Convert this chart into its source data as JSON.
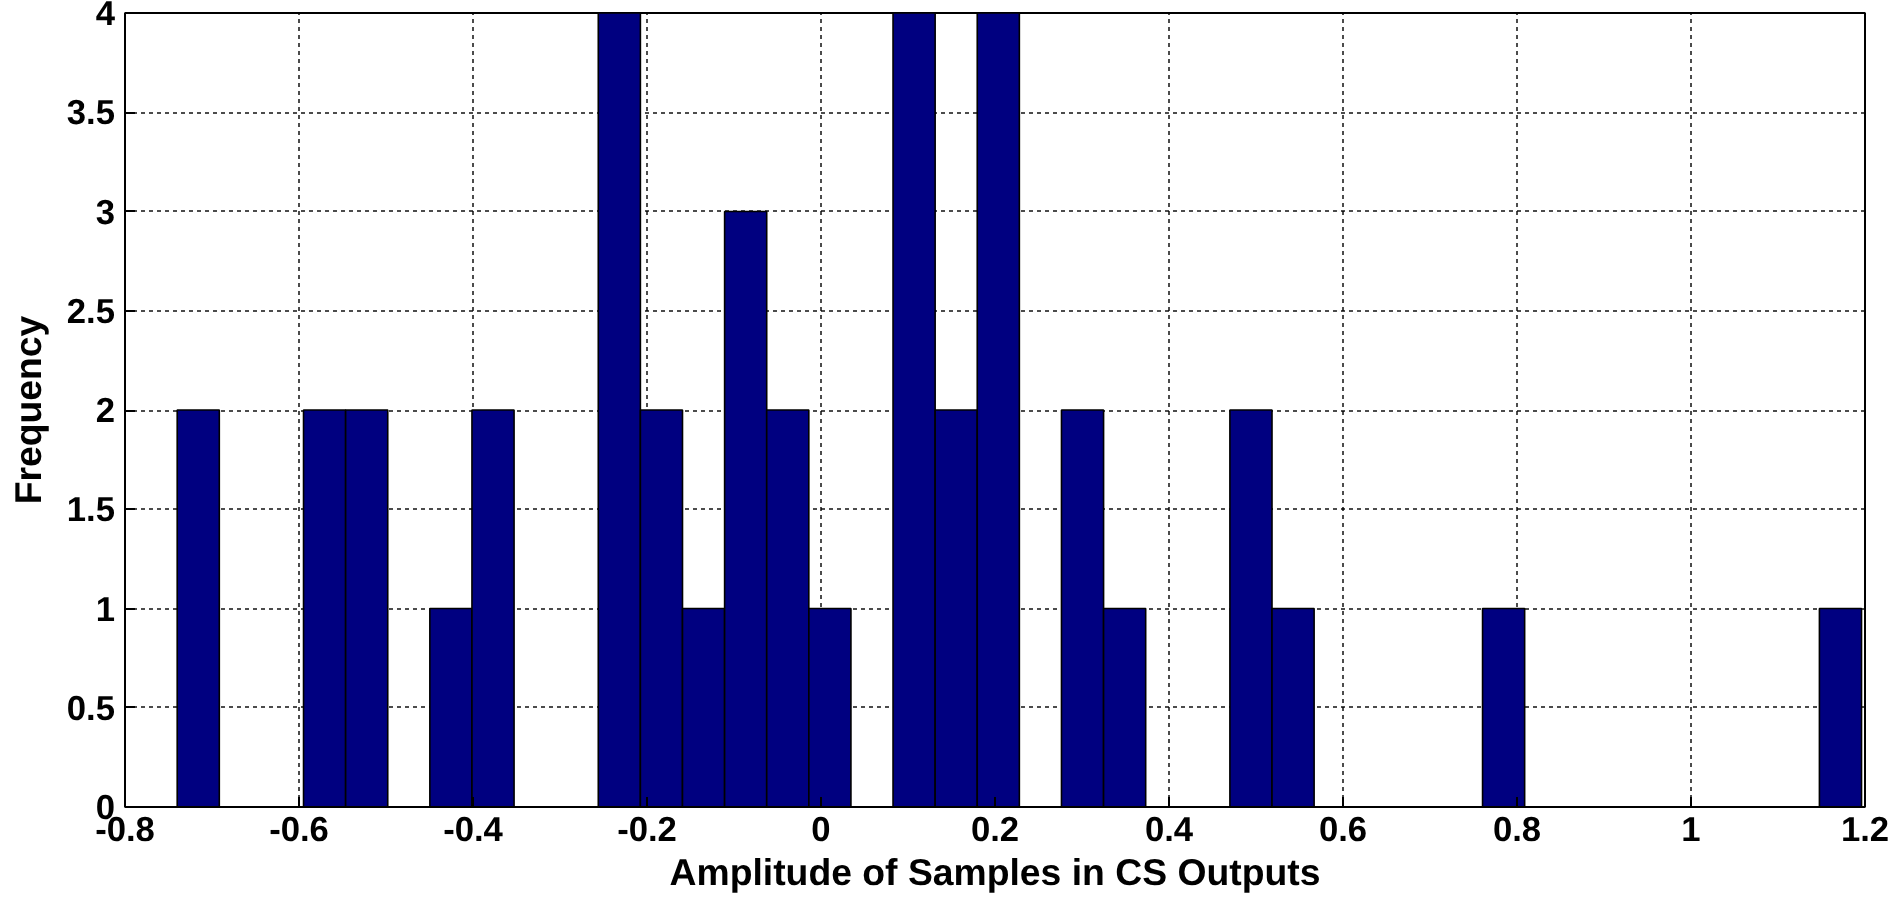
{
  "chart_data": {
    "type": "histogram",
    "xlabel": "Amplitude of Samples in CS Outputs",
    "ylabel": "Frequency",
    "bins": [
      -0.74,
      -0.6916,
      -0.6432,
      -0.5948,
      -0.5464,
      -0.498,
      -0.4496,
      -0.4012,
      -0.3528,
      -0.3044,
      -0.256,
      -0.2076,
      -0.1592,
      -0.1108,
      -0.0624,
      -0.014,
      0.0344,
      0.0828,
      0.1312,
      0.1796,
      0.228,
      0.2764,
      0.3248,
      0.3732,
      0.4216,
      0.47,
      0.5184,
      0.5668,
      0.6152,
      0.6636,
      0.712,
      0.7604,
      0.8088,
      0.8572,
      0.9056,
      0.954,
      1.0024,
      1.0508,
      1.0992,
      1.1476,
      1.196
    ],
    "values": [
      2,
      0,
      0,
      2,
      2,
      0,
      1,
      2,
      0,
      0,
      4,
      2,
      1,
      3,
      2,
      1,
      0,
      4,
      2,
      4,
      0,
      2,
      1,
      0,
      0,
      2,
      1,
      0,
      0,
      0,
      0,
      1,
      0,
      0,
      0,
      0,
      0,
      0,
      0,
      1
    ],
    "color": "#000080",
    "xlim": [
      -0.8,
      1.2
    ],
    "xticks": [
      -0.8,
      -0.6,
      -0.4,
      -0.2,
      0,
      0.2,
      0.4,
      0.6,
      0.8,
      1,
      1.2
    ],
    "ylim": [
      0,
      4
    ],
    "yticks": [
      0,
      0.5,
      1,
      1.5,
      2,
      2.5,
      3,
      3.5,
      4
    ],
    "grid": true
  }
}
